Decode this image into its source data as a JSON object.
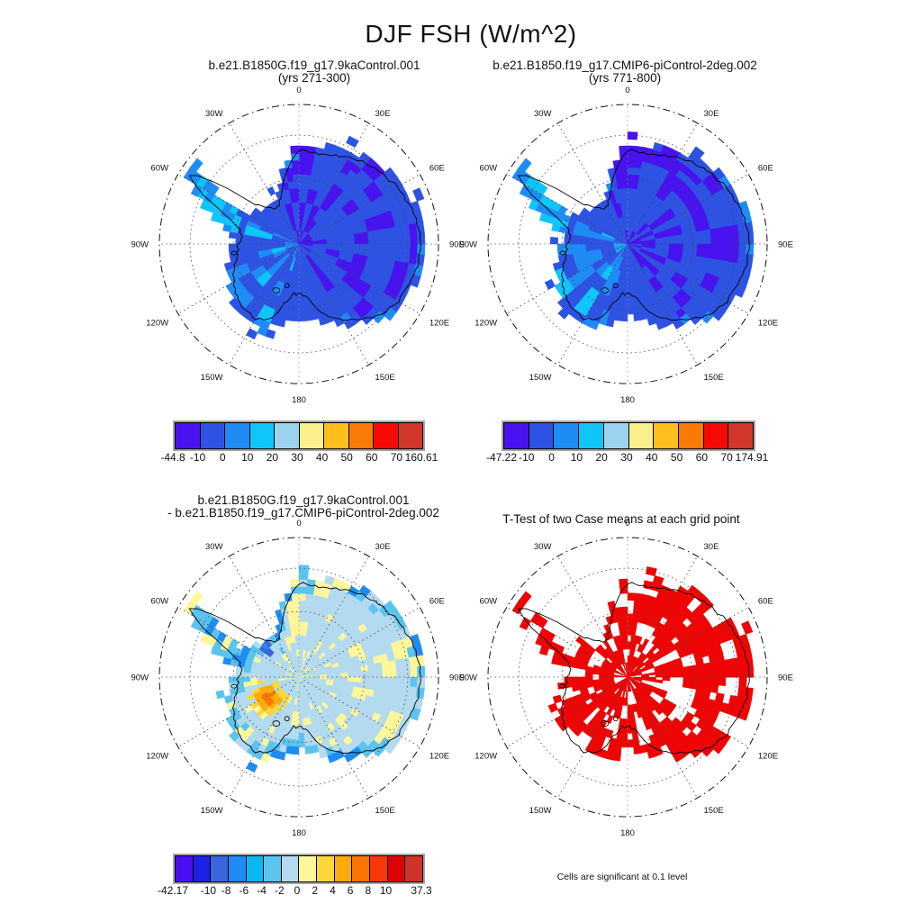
{
  "chart_data": {
    "type": "heatmap",
    "projection": "south-polar-stereographic",
    "variable": "FSH",
    "season": "DJF",
    "units": "W/m^2",
    "title": "DJF FSH (W/m^2)",
    "lon_labels": [
      "0",
      "30E",
      "60E",
      "90E",
      "120E",
      "150E",
      "180",
      "150W",
      "120W",
      "90W",
      "60W",
      "30W"
    ],
    "palette": {
      "violet": "#4713EE",
      "royal": "#2E53E3",
      "dodger": "#1F8CF5",
      "cyan": "#10C5FA",
      "sky": "#5BC4EE",
      "pale_blue": "#B4DAEF",
      "pale_yellow": "#FDF69B",
      "gold": "#FCD73C",
      "amber": "#FCAB0F",
      "orange": "#FB7506",
      "royal2": "#3A65DC",
      "red": "#EE0505",
      "coast": "#000000"
    },
    "panels": [
      {
        "name": "case1",
        "type": "field",
        "seed": 1,
        "title_lines": [
          "b.e21.B1850G.f19_g17.9kaControl.001",
          "(yrs 271-300)"
        ],
        "min": -44.8,
        "max": 160.61,
        "levels": [
          -10,
          0,
          10,
          20,
          30,
          40,
          50,
          60,
          70
        ],
        "colorbar": {
          "n_boxes": 10,
          "colors": [
            "#4713EE",
            "#2E53E3",
            "#1F8CF5",
            "#10C5FA",
            "#9CD2EE",
            "#FBF08B",
            "#FEBE1E",
            "#FA7A08",
            "#F50A05",
            "#D2372C"
          ],
          "tick_labels": [
            "-44.8",
            "-10",
            "0",
            "10",
            "20",
            "30",
            "40",
            "50",
            "60",
            "70",
            "160.61"
          ],
          "tick_edges": [
            0,
            1,
            2,
            3,
            4,
            5,
            6,
            7,
            8,
            9,
            10
          ]
        }
      },
      {
        "name": "case2",
        "type": "field",
        "seed": 2,
        "title_lines": [
          "b.e21.B1850.f19_g17.CMIP6-piControl-2deg.002",
          "(yrs 771-800)"
        ],
        "min": -47.22,
        "max": 174.91,
        "levels": [
          -10,
          0,
          10,
          20,
          30,
          40,
          50,
          60,
          70
        ],
        "colorbar": {
          "n_boxes": 10,
          "colors": [
            "#4713EE",
            "#2E53E3",
            "#1F8CF5",
            "#10C5FA",
            "#9CD2EE",
            "#FBF08B",
            "#FEBE1E",
            "#FA7A08",
            "#F50A05",
            "#D2372C"
          ],
          "tick_labels": [
            "-47.22",
            "-10",
            "0",
            "10",
            "20",
            "30",
            "40",
            "50",
            "60",
            "70",
            "174.91"
          ],
          "tick_edges": [
            0,
            1,
            2,
            3,
            4,
            5,
            6,
            7,
            8,
            9,
            10
          ]
        }
      },
      {
        "name": "difference",
        "type": "diff",
        "seed": 3,
        "title_lines": [
          "b.e21.B1850G.f19_g17.9kaControl.001",
          "- b.e21.B1850.f19_g17.CMIP6-piControl-2deg.002"
        ],
        "min": -42.17,
        "max": 37.3,
        "levels": [
          -12,
          -10,
          -8,
          -6,
          -4,
          -2,
          0,
          2,
          4,
          6,
          8,
          10,
          12
        ],
        "colorbar": {
          "n_boxes": 14,
          "colors": [
            "#4A0FEE",
            "#1B22E3",
            "#3A65DC",
            "#1E8BF7",
            "#06B9F2",
            "#5BC4EE",
            "#B4DAEF",
            "#FDF69B",
            "#FCD73C",
            "#FCAB0F",
            "#FB7506",
            "#F8370B",
            "#DD0303",
            "#CF332B"
          ],
          "tick_labels": [
            "-42.17",
            "-10",
            "-8",
            "-6",
            "-4",
            "-2",
            "0",
            "2",
            "4",
            "6",
            "8",
            "10",
            "37.3"
          ],
          "tick_edges": [
            0,
            2,
            3,
            4,
            5,
            6,
            7,
            8,
            9,
            10,
            11,
            12,
            14
          ]
        }
      },
      {
        "name": "ttest",
        "type": "ttest",
        "seed": 4,
        "title_lines": [
          "T-Test of two Case means at each grid point"
        ],
        "note": "Cells are significant at 0.1 level"
      }
    ]
  }
}
